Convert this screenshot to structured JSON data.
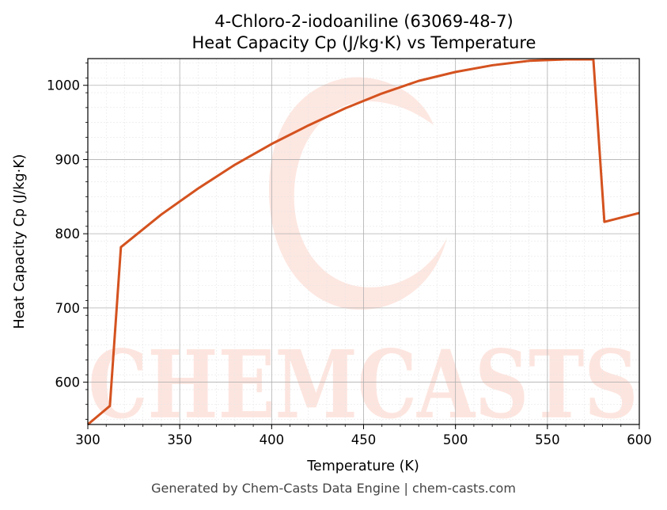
{
  "chart_data": {
    "type": "line",
    "title": "4-Chloro-2-iodoaniline (63069-48-7)",
    "subtitle": "Heat Capacity Cp (J/kg·K) vs Temperature",
    "xlabel": "Temperature (K)",
    "ylabel": "Heat Capacity Cp (J/kg·K)",
    "xlim": [
      300,
      600
    ],
    "ylim": [
      543,
      1036
    ],
    "x_ticks": [
      300,
      350,
      400,
      450,
      500,
      550,
      600
    ],
    "y_ticks": [
      600,
      700,
      800,
      900,
      1000
    ],
    "grid": true,
    "line_color": "#d4521f",
    "watermark": "CHEMCASTS",
    "watermark_color": "#fde3dc",
    "series": [
      {
        "x": [
          300,
          312,
          318,
          325,
          340,
          360,
          380,
          400,
          420,
          440,
          460,
          480,
          500,
          520,
          540,
          560,
          575,
          581,
          600
        ],
        "y": [
          543,
          568,
          782,
          796,
          826,
          861,
          893,
          921,
          946,
          969,
          989,
          1006,
          1018,
          1027,
          1033,
          1035,
          1035,
          816,
          828
        ]
      }
    ]
  },
  "footer": "Generated by Chem-Casts Data Engine | chem-casts.com"
}
